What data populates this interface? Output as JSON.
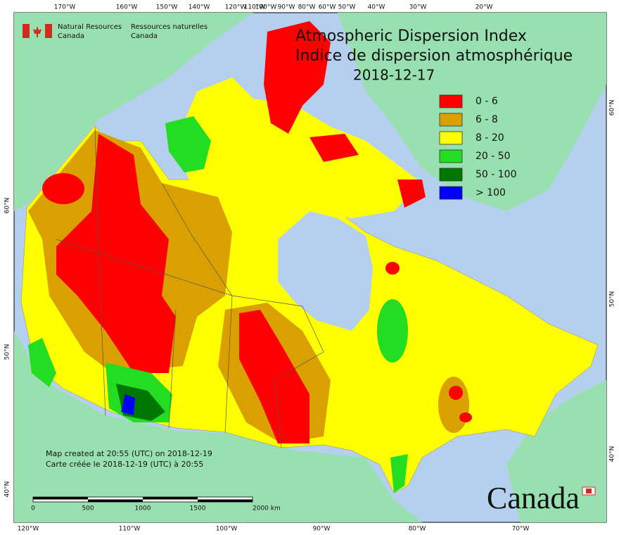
{
  "header": {
    "agency_en": [
      "Natural Resources",
      "Canada"
    ],
    "agency_fr": [
      "Ressources naturelles",
      "Canada"
    ]
  },
  "title": [
    "Atmospheric Dispersion Index",
    "Indice de dispersion atmosphérique"
  ],
  "date": "2018-12-17",
  "legend": [
    {
      "label": "0 - 6",
      "color": "#ff0000"
    },
    {
      "label": "6 - 8",
      "color": "#d9a000"
    },
    {
      "label": "8 - 20",
      "color": "#ffff00"
    },
    {
      "label": "20 - 50",
      "color": "#22dd22"
    },
    {
      "label": "50 - 100",
      "color": "#007700"
    },
    {
      "label": "> 100",
      "color": "#0000ff"
    }
  ],
  "graticule": {
    "top": [
      "170°W",
      "160°W",
      "150°W",
      "140°W",
      "120°W",
      "110°W",
      "100°W",
      "90°W",
      "80°W",
      "60°W",
      "50°W",
      "40°W",
      "30°W",
      "20°W"
    ],
    "left": [
      "60°N",
      "50°N",
      "40°N"
    ],
    "right": [
      "60°N",
      "50°N",
      "40°N"
    ],
    "bottom": [
      "120°W",
      "110°W",
      "100°W",
      "90°W",
      "80°W",
      "70°W"
    ]
  },
  "scale_bar": {
    "labels": [
      "0",
      "500",
      "1000",
      "1500",
      "2000 km"
    ]
  },
  "footer": [
    "Map created at 20:55 (UTC) on 2018-12-19",
    "Carte créée le 2018-12-19 (UTC) à 20:55"
  ],
  "wordmark": "Canada"
}
